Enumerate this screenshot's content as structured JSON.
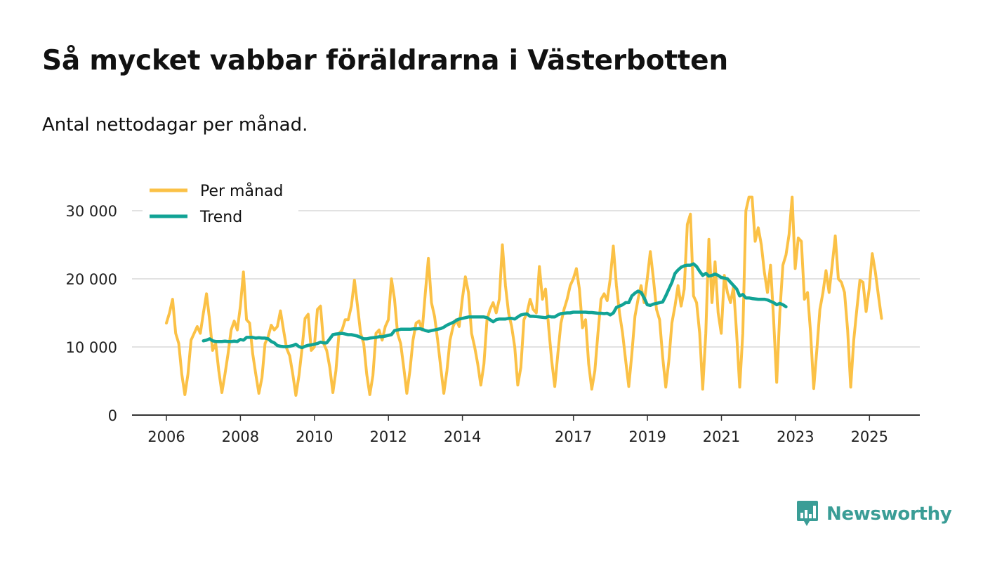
{
  "header": {
    "title": "Så mycket vabbar föräldrarna i Västerbotten",
    "subtitle": "Antal nettodagar per månad."
  },
  "brand": {
    "name": "Newsworthy",
    "color": "#3a9d96"
  },
  "chart_data": {
    "type": "line",
    "title": "Så mycket vabbar föräldrarna i Västerbotten",
    "subtitle": "Antal nettodagar per månad.",
    "xlabel": "",
    "ylabel": "",
    "xlim": [
      2006,
      2025.5
    ],
    "ylim": [
      0,
      31000
    ],
    "grid": true,
    "legend_position": "top-left",
    "x_ticks": [
      {
        "value": 2006,
        "label": "2006"
      },
      {
        "value": 2008,
        "label": "2008"
      },
      {
        "value": 2010,
        "label": "2010"
      },
      {
        "value": 2012,
        "label": "2012"
      },
      {
        "value": 2014,
        "label": "2014"
      },
      {
        "value": 2017,
        "label": "2017"
      },
      {
        "value": 2019,
        "label": "2019"
      },
      {
        "value": 2021,
        "label": "2021"
      },
      {
        "value": 2023,
        "label": "2023"
      },
      {
        "value": 2025,
        "label": "2025"
      }
    ],
    "y_ticks": [
      {
        "value": 0,
        "label": "0"
      },
      {
        "value": 10000,
        "label": "10 000"
      },
      {
        "value": 20000,
        "label": "20 000"
      },
      {
        "value": 30000,
        "label": "30 000"
      }
    ],
    "series": [
      {
        "name": "Per månad",
        "color": "#fbc146",
        "x_start": 2006.0,
        "x_step": 0.0833,
        "values": [
          13500,
          15000,
          17000,
          12000,
          10500,
          6000,
          3000,
          6000,
          11000,
          12000,
          13000,
          12000,
          15000,
          17800,
          14000,
          9500,
          10500,
          6500,
          3300,
          6000,
          9000,
          12500,
          13800,
          12500,
          16000,
          21000,
          14000,
          13500,
          9000,
          6000,
          3200,
          5500,
          10500,
          11500,
          13200,
          12500,
          13000,
          15300,
          12500,
          9800,
          8700,
          6000,
          2900,
          5800,
          9800,
          14200,
          14800,
          9500,
          10000,
          15500,
          16000,
          10500,
          9500,
          7000,
          3300,
          6500,
          12000,
          12500,
          14000,
          14000,
          16000,
          19800,
          16000,
          12000,
          10500,
          6000,
          3000,
          5800,
          12000,
          12500,
          11000,
          13000,
          14000,
          20000,
          17000,
          12000,
          10500,
          7000,
          3200,
          6500,
          11000,
          13500,
          13800,
          12500,
          18000,
          23000,
          16500,
          14500,
          11000,
          7000,
          3200,
          6500,
          11000,
          13000,
          14000,
          13000,
          17000,
          20300,
          18000,
          12000,
          10000,
          7500,
          4400,
          7500,
          14000,
          15500,
          16500,
          15000,
          17000,
          25000,
          19000,
          15000,
          13000,
          10000,
          4400,
          7000,
          14000,
          15000,
          17000,
          15500,
          15000,
          21800,
          17000,
          18500,
          13000,
          8000,
          4200,
          9000,
          13500,
          15500,
          17000,
          19000,
          20000,
          21500,
          18500,
          12800,
          14000,
          7500,
          3800,
          6500,
          12000,
          17000,
          17800,
          16800,
          20000,
          24800,
          19000,
          15000,
          12000,
          8000,
          4200,
          9000,
          14500,
          17000,
          19000,
          16500,
          20000,
          24000,
          20000,
          15500,
          14000,
          8500,
          4100,
          8000,
          13500,
          16000,
          19000,
          16000,
          18500,
          28000,
          29500,
          17500,
          16500,
          12000,
          3800,
          12000,
          25800,
          16500,
          22500,
          15000,
          12000,
          20500,
          18000,
          16500,
          18800,
          12000,
          4100,
          12000,
          30000,
          32000,
          32000,
          25500,
          27500,
          25000,
          21000,
          18000,
          22000,
          14000,
          4800,
          15000,
          22000,
          23500,
          26500,
          32000,
          21500,
          26000,
          25500,
          17000,
          18000,
          12000,
          3900,
          9500,
          15500,
          18000,
          21200,
          18000,
          22000,
          26300,
          20000,
          19500,
          18000,
          12500,
          4100,
          11000,
          15500,
          19800,
          19500,
          15200,
          18500,
          23700,
          21000,
          17500,
          14200
        ]
      },
      {
        "name": "Trend",
        "color": "#11a395",
        "x_start": 2007.0,
        "x_step": 0.0833,
        "values": [
          10900,
          11000,
          11200,
          10900,
          10800,
          10800,
          10800,
          10850,
          10800,
          10800,
          10850,
          10800,
          11100,
          11000,
          11400,
          11400,
          11400,
          11300,
          11350,
          11300,
          11300,
          11200,
          10800,
          10600,
          10200,
          10100,
          10050,
          10050,
          10100,
          10200,
          10400,
          10050,
          9900,
          10100,
          10250,
          10300,
          10400,
          10500,
          10700,
          10600,
          10600,
          11200,
          11800,
          11900,
          11950,
          12000,
          11900,
          11800,
          11800,
          11700,
          11600,
          11400,
          11200,
          11200,
          11300,
          11350,
          11400,
          11500,
          11500,
          11600,
          11700,
          11800,
          12400,
          12500,
          12600,
          12600,
          12600,
          12600,
          12650,
          12650,
          12700,
          12600,
          12400,
          12300,
          12400,
          12500,
          12600,
          12700,
          12900,
          13200,
          13400,
          13600,
          13900,
          14100,
          14200,
          14300,
          14400,
          14400,
          14400,
          14400,
          14400,
          14400,
          14300,
          14000,
          13700,
          14000,
          14100,
          14100,
          14100,
          14200,
          14200,
          14100,
          14400,
          14700,
          14800,
          14850,
          14500,
          14500,
          14450,
          14400,
          14350,
          14300,
          14500,
          14400,
          14400,
          14700,
          14900,
          14950,
          15000,
          15000,
          15100,
          15100,
          15100,
          15100,
          15100,
          15050,
          15050,
          15000,
          14950,
          14950,
          14900,
          14950,
          14700,
          15000,
          15800,
          16000,
          16200,
          16500,
          16500,
          17500,
          17900,
          18200,
          18000,
          17200,
          16200,
          16100,
          16300,
          16400,
          16500,
          16600,
          17500,
          18500,
          19500,
          20800,
          21300,
          21700,
          21900,
          22000,
          22000,
          22200,
          21800,
          21100,
          20500,
          20800,
          20400,
          20500,
          20700,
          20500,
          20200,
          20100,
          20000,
          19500,
          19000,
          18500,
          17500,
          17700,
          17200,
          17200,
          17100,
          17050,
          17000,
          17000,
          17000,
          16900,
          16700,
          16500,
          16200,
          16400,
          16200,
          15900
        ]
      }
    ]
  }
}
